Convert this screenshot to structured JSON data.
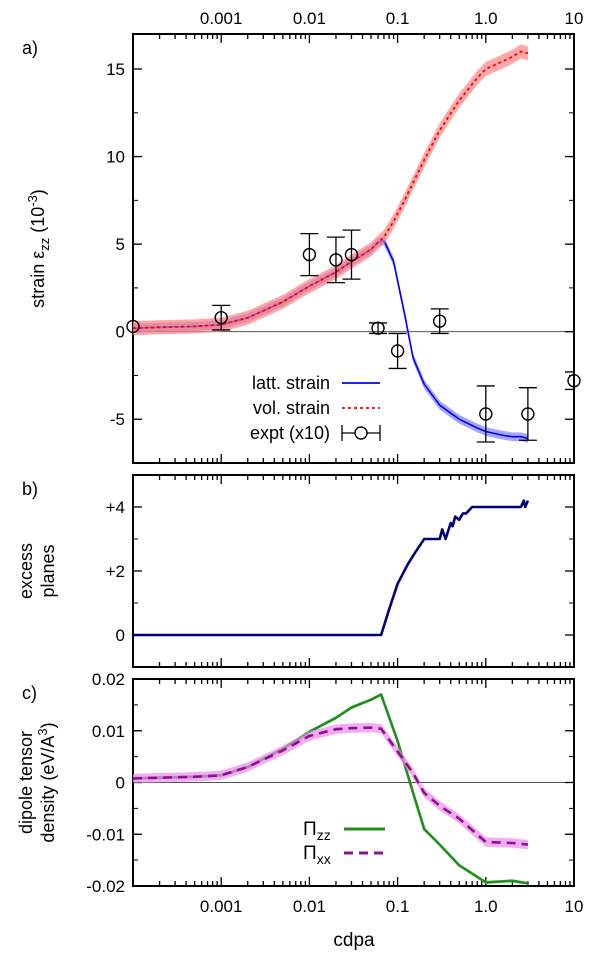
{
  "figure": {
    "xlabel": "cdpa",
    "x_scale": "log",
    "xlim": [
      0.0001,
      10
    ],
    "x_tick_labels": [
      "0.001",
      "0.01",
      "0.1",
      "1.0",
      "10"
    ],
    "x_tick_values": [
      0.001,
      0.01,
      0.1,
      1,
      10
    ]
  },
  "chart_data": [
    {
      "type": "line",
      "panel_label": "a)",
      "ylabel_parts": [
        "strain ε",
        "zz",
        " (10",
        "-3",
        ")"
      ],
      "ylim": [
        -7.5,
        17
      ],
      "y_ticks": [
        -5,
        0,
        5,
        10,
        15
      ],
      "y_tick_labels": [
        "-5",
        "0",
        "5",
        "10",
        "15"
      ],
      "zero_line": true,
      "legend_placement": "bottom-right",
      "series": [
        {
          "name": "latt. strain",
          "color": "#0000ff",
          "style": "solid",
          "band_color": "#8080ff",
          "x": [
            0.0001,
            0.0002,
            0.0005,
            0.001,
            0.002,
            0.005,
            0.01,
            0.02,
            0.03,
            0.05,
            0.06,
            0.07,
            0.09,
            0.12,
            0.15,
            0.2,
            0.3,
            0.5,
            0.8,
            1.0,
            1.5,
            2.0,
            2.5,
            3.0
          ],
          "values": [
            0.2,
            0.25,
            0.3,
            0.4,
            0.8,
            1.7,
            2.6,
            3.4,
            4.0,
            4.7,
            5.1,
            5.2,
            4.0,
            1.0,
            -1.5,
            -3.0,
            -4.2,
            -5.0,
            -5.5,
            -5.7,
            -5.9,
            -6.0,
            -6.0,
            -6.1
          ],
          "band": 0.25
        },
        {
          "name": "vol. strain",
          "color": "#ff0000",
          "style": "dotted",
          "band_color": "#ff8080",
          "x": [
            0.0001,
            0.0002,
            0.0005,
            0.001,
            0.002,
            0.005,
            0.01,
            0.02,
            0.03,
            0.05,
            0.06,
            0.07,
            0.09,
            0.12,
            0.15,
            0.2,
            0.3,
            0.5,
            0.8,
            1.0,
            1.5,
            2.0,
            2.5,
            3.0
          ],
          "values": [
            0.2,
            0.25,
            0.3,
            0.4,
            0.8,
            1.7,
            2.6,
            3.4,
            4.0,
            4.7,
            5.1,
            5.4,
            6.3,
            7.5,
            8.5,
            9.8,
            11.5,
            13.2,
            14.5,
            15.0,
            15.4,
            15.7,
            16.0,
            15.9
          ],
          "band": 0.4
        },
        {
          "name": "expt (x10)",
          "type": "scatter",
          "color": "#000000",
          "marker": "open-circle",
          "x": [
            0.0001,
            0.001,
            0.01,
            0.02,
            0.03,
            0.06,
            0.1,
            0.3,
            1.0,
            3.0,
            10
          ],
          "values": [
            0.3,
            0.8,
            4.4,
            4.1,
            4.4,
            0.2,
            -1.1,
            0.6,
            -4.7,
            -4.7,
            -2.8
          ],
          "yerr": [
            0,
            0.7,
            1.2,
            1.3,
            1.4,
            0.3,
            1.0,
            0.7,
            1.6,
            1.5,
            0.5
          ]
        }
      ]
    },
    {
      "type": "line",
      "panel_label": "b)",
      "ylabel_lines": [
        "excess",
        "planes"
      ],
      "ylim": [
        -1,
        5
      ],
      "y_ticks": [
        0,
        2,
        4
      ],
      "y_tick_labels": [
        "0",
        "+2",
        "+4"
      ],
      "series": [
        {
          "color": "#00007f",
          "style": "solid",
          "x": [
            0.0001,
            0.065,
            0.08,
            0.1,
            0.13,
            0.16,
            0.2,
            0.25,
            0.3,
            0.32,
            0.35,
            0.4,
            0.42,
            0.45,
            0.5,
            0.55,
            0.6,
            0.7,
            1.0,
            1.5,
            2.0,
            2.5,
            2.7,
            2.8,
            3.0
          ],
          "values": [
            0,
            0,
            0.8,
            1.6,
            2.2,
            2.6,
            3.0,
            3.0,
            3.0,
            3.3,
            3.0,
            3.5,
            3.4,
            3.7,
            3.6,
            3.8,
            3.8,
            4.0,
            4.0,
            4.0,
            4.0,
            4.0,
            4.2,
            4.0,
            4.2
          ]
        }
      ]
    },
    {
      "type": "line",
      "panel_label": "c)",
      "ylabel_lines": [
        "dipole tensor",
        "density (eV/A",
        "3",
        ")"
      ],
      "ylim": [
        -0.02,
        0.02
      ],
      "y_ticks": [
        -0.02,
        -0.01,
        0,
        0.01,
        0.02
      ],
      "y_tick_labels": [
        "-0.02",
        "-0.01",
        "0",
        "0.01",
        "0.02"
      ],
      "zero_line": true,
      "legend_placement": "bottom-right",
      "series": [
        {
          "name": "Π zz",
          "name_parts": [
            "Π",
            "zz"
          ],
          "color": "#1f8f1f",
          "style": "solid",
          "band_color": "#7fd07f",
          "x": [
            0.0001,
            0.0005,
            0.001,
            0.002,
            0.005,
            0.01,
            0.02,
            0.03,
            0.05,
            0.065,
            0.1,
            0.15,
            0.2,
            0.3,
            0.5,
            1.0,
            2.0,
            3.0
          ],
          "values": [
            0.0008,
            0.0011,
            0.0014,
            0.003,
            0.0065,
            0.0098,
            0.0125,
            0.0145,
            0.016,
            0.017,
            0.008,
            -0.002,
            -0.009,
            -0.012,
            -0.016,
            -0.0193,
            -0.019,
            -0.0195
          ],
          "band": 0.0003
        },
        {
          "name": "Π xx",
          "name_parts": [
            "Π",
            "xx"
          ],
          "color": "#8f108f",
          "style": "dashed",
          "band_color": "#ee88ee",
          "x": [
            0.0001,
            0.0005,
            0.001,
            0.002,
            0.005,
            0.01,
            0.02,
            0.03,
            0.05,
            0.065,
            0.1,
            0.15,
            0.2,
            0.3,
            0.5,
            1.0,
            2.0,
            3.0
          ],
          "values": [
            0.0008,
            0.0011,
            0.0014,
            0.003,
            0.0062,
            0.009,
            0.0103,
            0.0105,
            0.0106,
            0.0104,
            0.006,
            0.0018,
            -0.002,
            -0.0045,
            -0.007,
            -0.0115,
            -0.0117,
            -0.012
          ],
          "band": 0.0009
        }
      ]
    }
  ]
}
